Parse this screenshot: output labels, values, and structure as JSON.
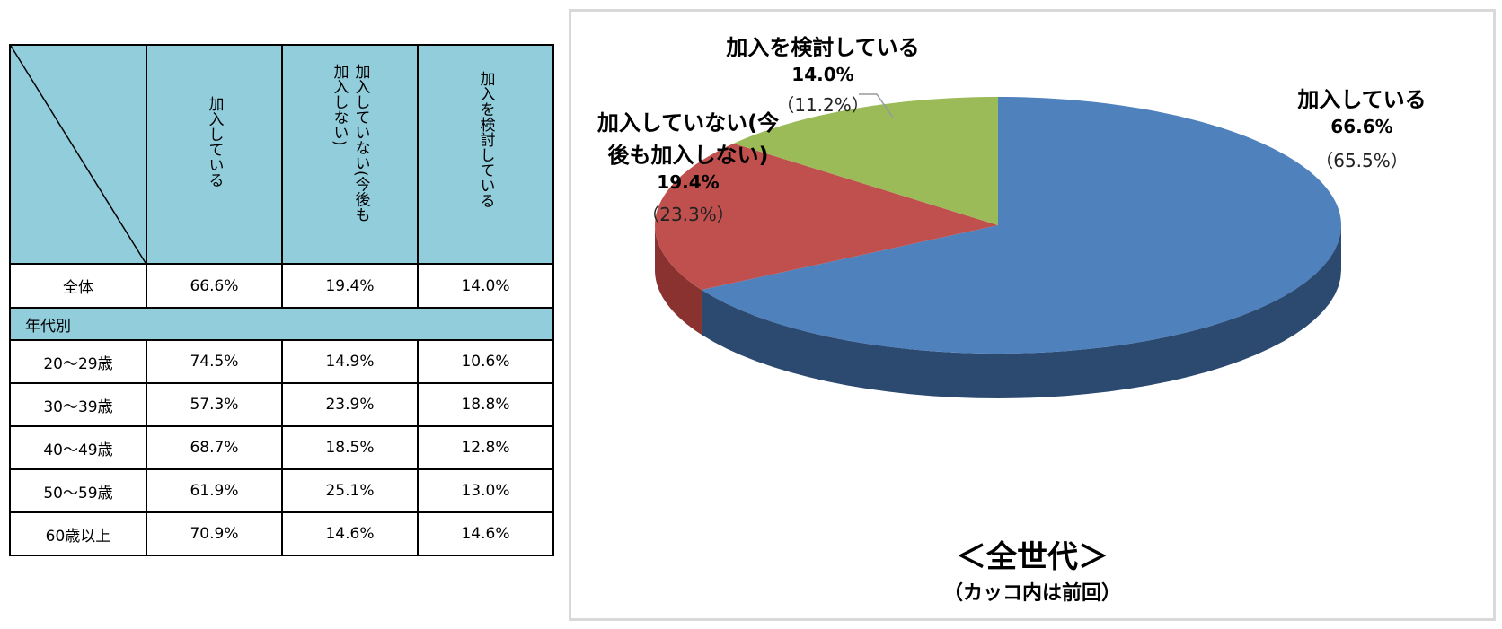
{
  "table": {
    "headers": [
      "加入している",
      "加入していない(今後も加入しない)",
      "加入を検討している"
    ],
    "overall": {
      "label": "全体",
      "values": [
        "66.6%",
        "19.4%",
        "14.0%"
      ]
    },
    "group_label": "年代別",
    "rows": [
      {
        "label": "20〜29歳",
        "values": [
          "74.5%",
          "14.9%",
          "10.6%"
        ]
      },
      {
        "label": "30〜39歳",
        "values": [
          "57.3%",
          "23.9%",
          "18.8%"
        ]
      },
      {
        "label": "40〜49歳",
        "values": [
          "68.7%",
          "18.5%",
          "12.8%"
        ]
      },
      {
        "label": "50〜59歳",
        "values": [
          "61.9%",
          "25.1%",
          "13.0%"
        ]
      },
      {
        "label": "60歳以上",
        "values": [
          "70.9%",
          "14.6%",
          "14.6%"
        ]
      }
    ]
  },
  "chart_data": {
    "type": "pie",
    "title": "＜全世代＞",
    "subtitle": "（カッコ内は前回）",
    "slices": [
      {
        "label": "加入している",
        "value": 66.6,
        "previous": 65.5,
        "value_label": "66.6%",
        "previous_label": "（65.5%）",
        "color": "#4f81bd",
        "side_color": "#2c4a70"
      },
      {
        "label": "加入していない(今後も加入しない)",
        "label_line1": "加入していない(今",
        "label_line2": "後も加入しない)",
        "value": 19.4,
        "previous": 23.3,
        "value_label": "19.4%",
        "previous_label": "（23.3%）",
        "color": "#c0504d",
        "side_color": "#8a3230"
      },
      {
        "label": "加入を検討している",
        "value": 14.0,
        "previous": 11.2,
        "value_label": "14.0%",
        "previous_label": "（11.2%）",
        "color": "#9bbb59",
        "side_color": "#6f8a3c"
      }
    ]
  }
}
